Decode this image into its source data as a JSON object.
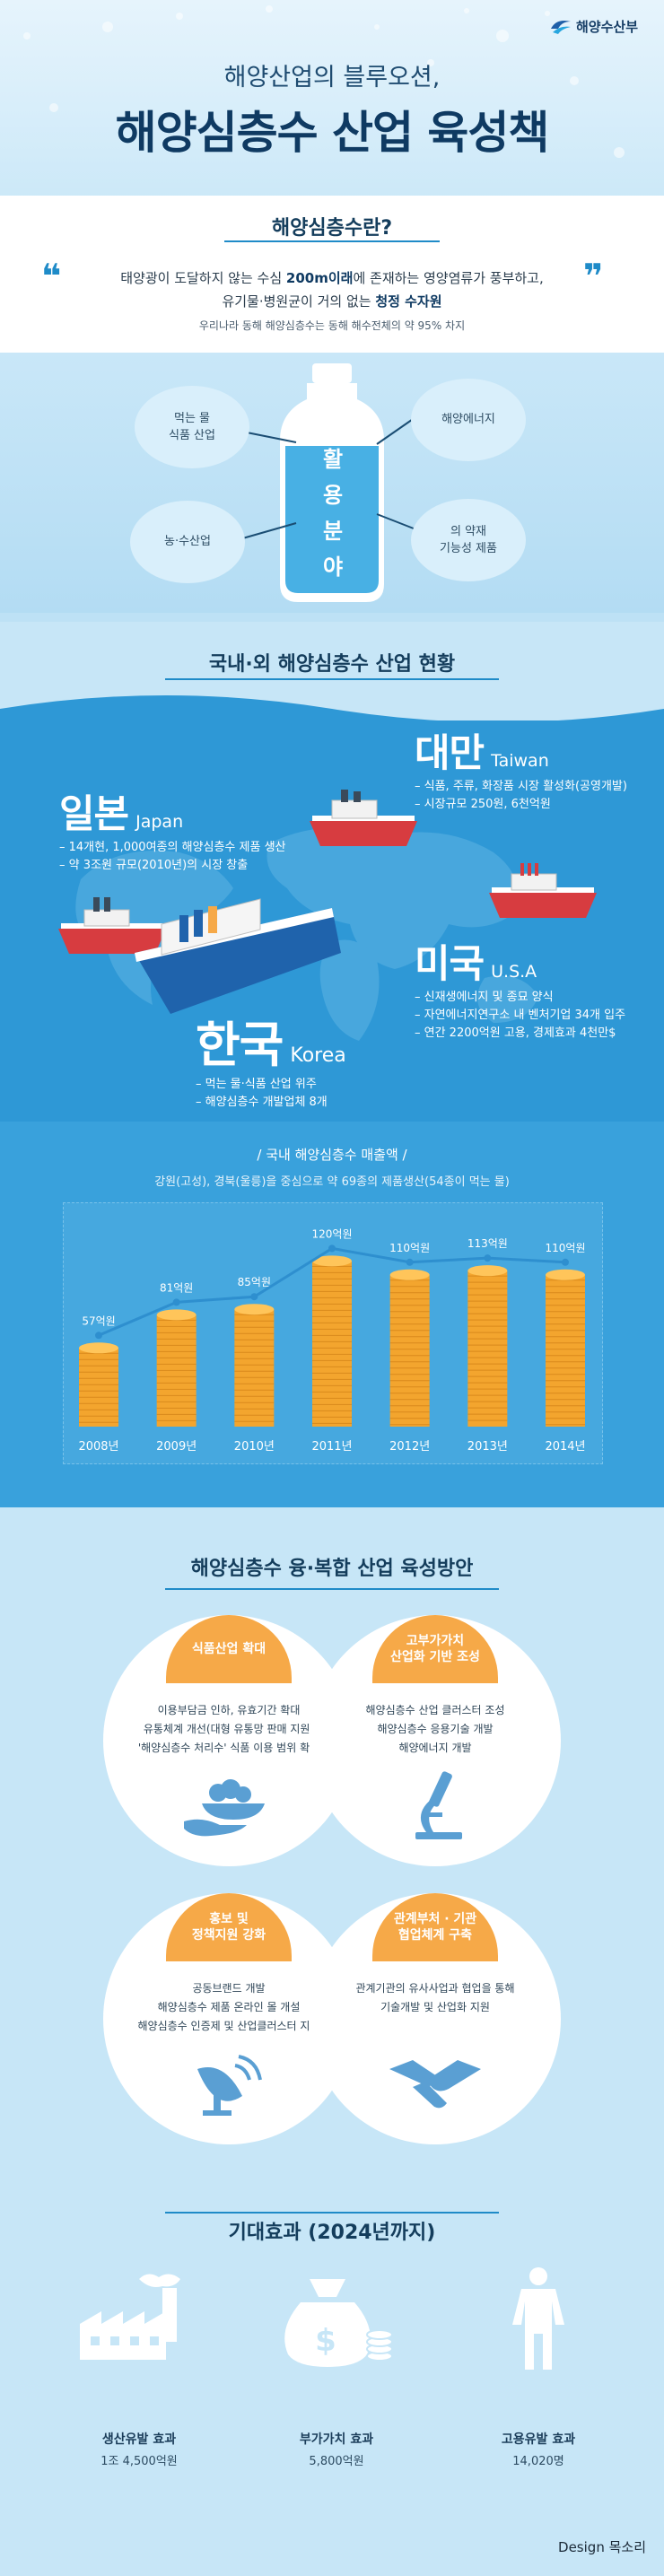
{
  "brand": {
    "name": "해양수산부"
  },
  "header": {
    "subtitle": "해양산업의 블루오션,",
    "title": "해양심층수 산업 육성책"
  },
  "what_is": {
    "title": "해양심층수란?",
    "quote_open": "❝",
    "quote_close": "❞",
    "line1_prefix": "태양광이 도달하지 않는 수심 ",
    "line1_bold": "200m이래",
    "line1_suffix": "에 존재하는 영양염류가 풍부하고,",
    "line2_prefix": "유기물·병원균이 거의 없는 ",
    "line2_bold": "청정 수자원",
    "line3": "우리나라 동해 해양심층수는 동해 해수전체의 약 95% 차지"
  },
  "usage": {
    "bottle": [
      "활",
      "용",
      "분",
      "야"
    ],
    "items": [
      "먹는 물\n식품 산업",
      "해양에너지",
      "농·수산업",
      "의 약재\n기능성 제품"
    ]
  },
  "status": {
    "title": "국내·외 해양심층수 산업 현황",
    "taiwan": {
      "name": "대만",
      "en": "Taiwan",
      "lines": [
        "– 식품, 주류, 화장품 시장 활성화(공영개발)",
        "– 시장규모 250원, 6천억원"
      ]
    },
    "japan": {
      "name": "일본",
      "en": "Japan",
      "lines": [
        "– 14개현, 1,000여종의 해양심층수 제품 생산",
        "– 약 3조원 규모(2010년)의 시장 창출"
      ]
    },
    "usa": {
      "name": "미국",
      "en": "U.S.A",
      "lines": [
        "– 신재생에너지 및 종묘 양식",
        "– 자연에너지연구소 내 벤처기업 34개 입주",
        "– 연간 2200억원 고용, 경제효과 4천만$"
      ]
    },
    "korea": {
      "name": "한국",
      "en": "Korea",
      "lines": [
        "– 먹는 물·식품 산업 위주",
        "– 해양심층수 개발업체 8개"
      ]
    }
  },
  "sales": {
    "title": "/ 국내 해양심층수 매출액 /",
    "desc": "강원(고성), 경북(울릉)을 중심으로 약 69종의 제품생산(54종이 먹는 물)"
  },
  "chart_data": {
    "type": "bar",
    "categories": [
      "2008년",
      "2009년",
      "2010년",
      "2011년",
      "2012년",
      "2013년",
      "2014년"
    ],
    "values": [
      57,
      81,
      85,
      120,
      110,
      113,
      110
    ],
    "labels": [
      "57억원",
      "81억원",
      "85억원",
      "120억원",
      "110억원",
      "113억원",
      "110억원"
    ],
    "ylim": [
      0,
      130
    ],
    "colors": {
      "coin": "#f3a52e",
      "line": "#2e8fcf"
    }
  },
  "strategy": {
    "title": "해양심층수 융·복합 산업 육성방안",
    "panels": [
      {
        "tab": "식품산업 확대",
        "lines": [
          "이용부담금 인하, 유효기간 확대",
          "유통체계 개선(대형 유통망 판매 지원)",
          "'해양심층수 처리수' 식품 이용 범위 확대"
        ]
      },
      {
        "tab": "고부가가치\n산업화 기반 조성",
        "lines": [
          "해양심층수 산업 클러스터 조성",
          "해양심층수 응용기술 개발",
          "해양에너지 개발"
        ]
      },
      {
        "tab": "홍보 및\n정책지원 강화",
        "lines": [
          "공동브랜드 개발",
          "해양심층수 제품 온라인 몰 개설",
          "해양심층수 인증제 및 산업클러스터 지원"
        ]
      },
      {
        "tab": "관계부처 · 기관\n협업체계 구축",
        "lines": [
          "관계기관의 유사사업과 협업을 통해",
          "기술개발 및 산업화 지원"
        ]
      }
    ]
  },
  "effects": {
    "title": "기대효과 (2024년까지)",
    "items": [
      {
        "label": "생산유발 효과",
        "value": "1조 4,500억원"
      },
      {
        "label": "부가가치 효과",
        "value": "5,800억원"
      },
      {
        "label": "고용유발 효과",
        "value": "14,020명"
      }
    ]
  },
  "footer": {
    "credit": "Design 목소리"
  },
  "colors": {
    "bg": "#c7e6f7",
    "dark_blue": "#1a4d73",
    "accent": "#1f8bc8",
    "orange": "#f6a948"
  }
}
